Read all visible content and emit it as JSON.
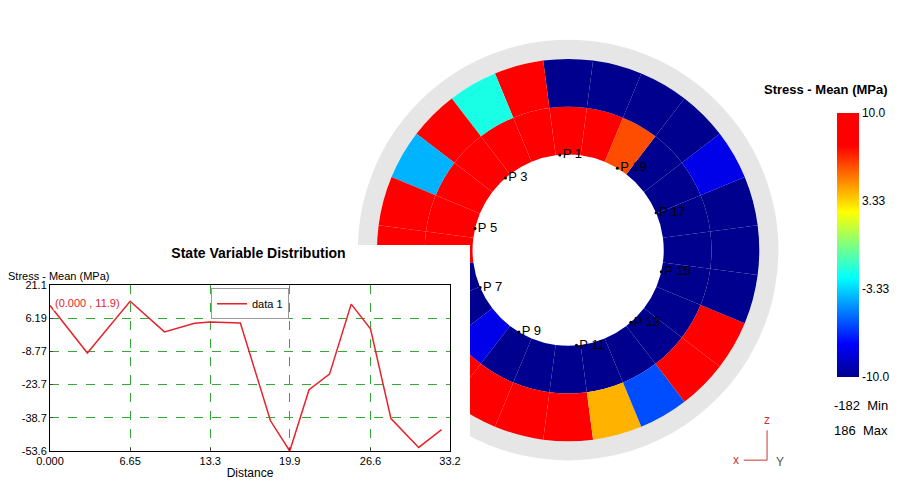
{
  "chart_data": {
    "type": "line",
    "title": "State Variable Distribution",
    "xlabel": "Distance",
    "ylabel": "Stress - Mean (MPa)",
    "x": [
      0,
      3.1,
      6.65,
      9.5,
      12,
      13.3,
      15.8,
      18.3,
      19.9,
      21.5,
      23.2,
      25,
      26.6,
      28.3,
      30.6,
      32.5
    ],
    "series": [
      {
        "name": "data 1",
        "color": "#e8212b",
        "values": [
          11.9,
          -9.5,
          13.8,
          0,
          3.9,
          4.5,
          4,
          -40,
          -53.6,
          -26,
          -19,
          12.5,
          1.4,
          -39,
          -52,
          -44
        ]
      }
    ],
    "xlim": [
      0,
      33.2
    ],
    "xticks": [
      {
        "value": 0,
        "label": "0.000"
      },
      6.65,
      13.3,
      19.9,
      26.6,
      33.2
    ],
    "ylim": [
      -53.6,
      21.1
    ],
    "yticks": [
      -53.6,
      -38.7,
      -23.7,
      -8.77,
      6.19,
      21.1
    ],
    "grid": true,
    "legend": "top",
    "annotations": [
      {
        "text": "(0.000 , 11.9)",
        "x": 0,
        "y": 11.9
      }
    ]
  },
  "contour_view": {
    "colorbar_title": "Stress - Mean (MPa)",
    "color_range": [
      -10,
      10
    ],
    "color_ticks": [
      {
        "value": 10,
        "label": "10.0"
      },
      3.33,
      -3.33,
      {
        "value": -10,
        "label": "-10.0"
      }
    ],
    "min": {
      "value": -182,
      "label": "Min"
    },
    "max": {
      "value": 186,
      "label": "Max"
    },
    "point_labels": [
      "P 1",
      "P 3",
      "P 5",
      "P 7",
      "P 9",
      "P 11",
      "P 13",
      "P 15",
      "P 17",
      "P 19"
    ],
    "inner_sectors": [
      -10,
      -10,
      -10,
      -10,
      6,
      10,
      10,
      10,
      10,
      10,
      10,
      10,
      10,
      -10,
      -10,
      -8,
      -10,
      -10,
      -10,
      -10,
      -10,
      -10,
      -10,
      -10
    ],
    "outer_sectors": [
      -10,
      -10,
      -8,
      -10,
      -10,
      -10,
      -10,
      10,
      -2,
      10,
      -4,
      8,
      10,
      2,
      10,
      10,
      10,
      10,
      10,
      4,
      -6,
      8,
      10,
      -10
    ],
    "axis_triad": {
      "vertical": "z",
      "horizontal": "x",
      "depth": "Y"
    }
  }
}
